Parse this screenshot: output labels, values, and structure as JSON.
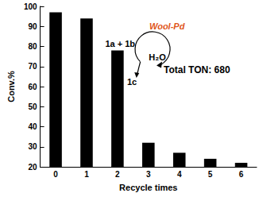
{
  "chart_data": {
    "type": "bar",
    "x_label": "Recycle times",
    "y_label": "Conv.%",
    "categories": [
      "0",
      "1",
      "2",
      "3",
      "4",
      "5",
      "6"
    ],
    "values": [
      97,
      94,
      78,
      32,
      27,
      24,
      22
    ],
    "color": "#000000",
    "ylim": [
      20,
      100
    ],
    "yticks": [
      20,
      30,
      40,
      50,
      60,
      70,
      80,
      90,
      100
    ],
    "grid": false,
    "annotations": [
      "Total TON: 680",
      "1a + 1b",
      "Wool-Pd",
      "H₂O",
      "1c"
    ]
  }
}
